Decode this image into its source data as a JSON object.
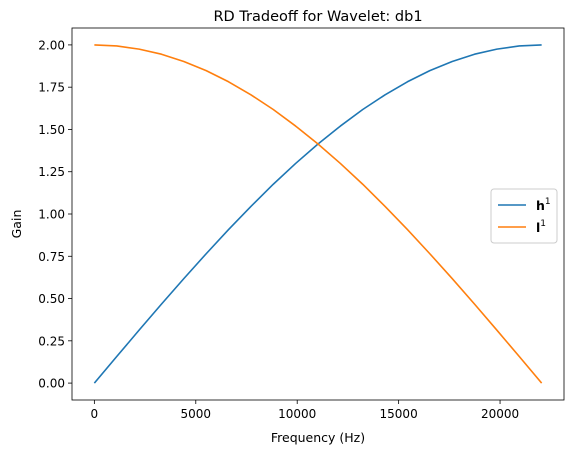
{
  "chart_data": {
    "type": "line",
    "title": "RD Tradeoff for Wavelet: db1",
    "xlabel": "Frequency (Hz)",
    "ylabel": "Gain",
    "xlim": [
      -1102.5,
      23152.5
    ],
    "ylim": [
      -0.1,
      2.1
    ],
    "xticks": [
      0,
      5000,
      10000,
      15000,
      20000
    ],
    "xtick_labels": [
      "0",
      "5000",
      "10000",
      "15000",
      "20000"
    ],
    "yticks": [
      0,
      0.25,
      0.5,
      0.75,
      1.0,
      1.25,
      1.5,
      1.75,
      2.0
    ],
    "ytick_labels": [
      "0.00",
      "0.25",
      "0.50",
      "0.75",
      "1.00",
      "1.25",
      "1.50",
      "1.75",
      "2.00"
    ],
    "grid": false,
    "legend_position": "center-right",
    "x": [
      0,
      1102.5,
      2205,
      3307.5,
      4410,
      5512.5,
      6615,
      7717.5,
      8820,
      9922.5,
      11025,
      12127.5,
      13230,
      14332.5,
      15435,
      16537.5,
      17640,
      18742.5,
      19845,
      20947.5,
      22050
    ],
    "series": [
      {
        "name": "h",
        "name_sup": "1",
        "color": "#1f77b4",
        "values": [
          0.0,
          0.157,
          0.313,
          0.467,
          0.618,
          0.765,
          0.908,
          1.045,
          1.176,
          1.299,
          1.414,
          1.52,
          1.618,
          1.705,
          1.782,
          1.848,
          1.902,
          1.945,
          1.975,
          1.994,
          2.0
        ]
      },
      {
        "name": "l",
        "name_sup": "1",
        "color": "#ff7f0e",
        "values": [
          2.0,
          1.994,
          1.975,
          1.945,
          1.902,
          1.848,
          1.782,
          1.705,
          1.618,
          1.52,
          1.414,
          1.299,
          1.176,
          1.045,
          0.908,
          0.765,
          0.618,
          0.467,
          0.313,
          0.157,
          0.0
        ]
      }
    ]
  }
}
